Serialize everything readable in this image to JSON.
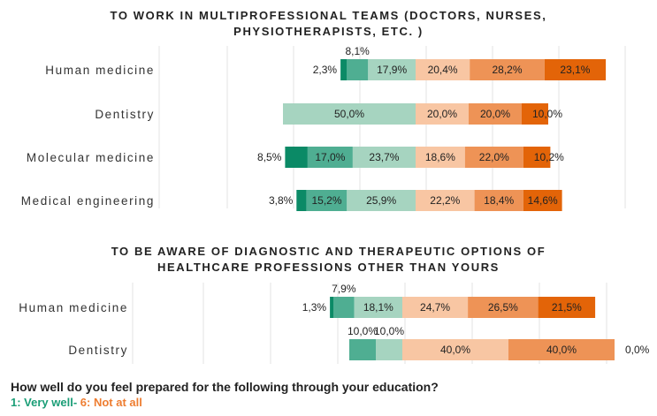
{
  "colors": [
    "#0b8a66",
    "#4fae92",
    "#a6d4c0",
    "#f8c6a3",
    "#ee9356",
    "#e36408"
  ],
  "footer": {
    "question": "How well do you feel prepared for the following through your education?",
    "scale_good": "1: Very well",
    "scale_sep": "- ",
    "scale_bad": "6: Not at all"
  },
  "chart_data": [
    {
      "type": "bar",
      "orientation": "horizontal",
      "stacked": true,
      "diverging": true,
      "title_lines": [
        "TO WORK IN MULTIPROFESSIONAL TEAMS (DOCTORS, NURSES,",
        "PHYSIOTHERAPISTS, ETC. )"
      ],
      "categories": [
        "Human medicine",
        "Dentistry",
        "Molecular medicine",
        "Medical engineering"
      ],
      "series": [
        {
          "values": [
            2.3,
            0.0,
            8.5,
            3.8
          ]
        },
        {
          "values": [
            8.1,
            0.0,
            17.0,
            15.2
          ]
        },
        {
          "values": [
            17.9,
            50.0,
            23.7,
            25.9
          ]
        },
        {
          "values": [
            20.4,
            20.0,
            18.6,
            22.2
          ]
        },
        {
          "values": [
            28.2,
            20.0,
            22.0,
            18.4
          ]
        },
        {
          "values": [
            23.1,
            10.0,
            10.2,
            14.6
          ]
        }
      ],
      "data_labels": [
        [
          "2,3%",
          "8,1%",
          "17,9%",
          "20,4%",
          "28,2%",
          "23,1%"
        ],
        [
          "",
          "",
          "50,0%",
          "20,0%",
          "20,0%",
          "10,0%"
        ],
        [
          "8,5%",
          "17,0%",
          "23,7%",
          "18,6%",
          "22,0%",
          "10,2%"
        ],
        [
          "3,8%",
          "15,2%",
          "25,9%",
          "22,2%",
          "18,4%",
          "14,6%"
        ]
      ],
      "grid": true
    },
    {
      "type": "bar",
      "orientation": "horizontal",
      "stacked": true,
      "diverging": true,
      "title_lines": [
        "TO BE AWARE OF DIAGNOSTIC AND THERAPEUTIC OPTIONS OF",
        "HEALTHCARE PROFESSIONS OTHER THAN YOURS"
      ],
      "categories": [
        "Human medicine",
        "Dentistry"
      ],
      "series": [
        {
          "values": [
            1.3,
            0.0
          ]
        },
        {
          "values": [
            7.9,
            10.0
          ]
        },
        {
          "values": [
            18.1,
            10.0
          ]
        },
        {
          "values": [
            24.7,
            40.0
          ]
        },
        {
          "values": [
            26.5,
            40.0
          ]
        },
        {
          "values": [
            21.5,
            0.0
          ]
        }
      ],
      "data_labels": [
        [
          "1,3%",
          "7,9%",
          "18,1%",
          "24,7%",
          "26,5%",
          "21,5%"
        ],
        [
          "",
          "10,0%",
          "10,0%",
          "40,0%",
          "40,0%",
          "0,0%"
        ]
      ],
      "grid": true
    }
  ]
}
